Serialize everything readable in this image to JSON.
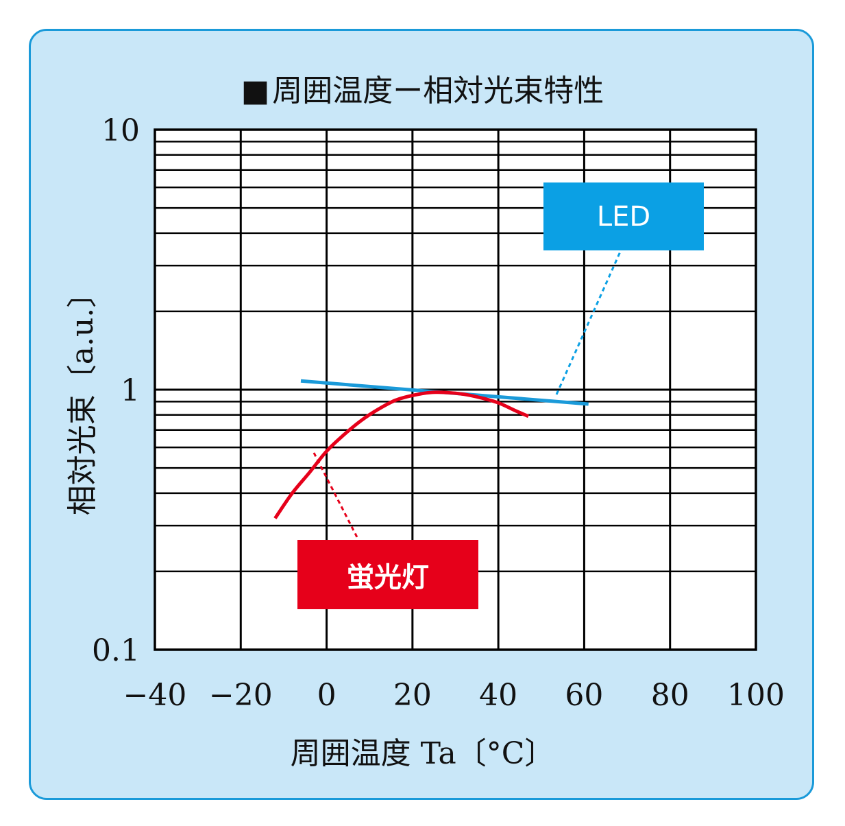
{
  "chart_data": {
    "type": "line",
    "title": "周囲温度ー相対光束特性",
    "title_marker": "■",
    "xlabel": "周囲温度 Ta〔°C〕",
    "ylabel": "相対光束〔a.u.〕",
    "x_ticks": [
      -40,
      -20,
      0,
      20,
      40,
      60,
      80,
      100
    ],
    "x_tick_labels": [
      "−40",
      "−20",
      "0",
      "20",
      "40",
      "60",
      "80",
      "100"
    ],
    "xlim": [
      -40,
      100
    ],
    "y_scale": "log",
    "ylim": [
      0.1,
      10
    ],
    "y_tick_labels": [
      "10",
      "1",
      "0.1"
    ],
    "grid": true,
    "series": [
      {
        "name": "LED",
        "color": "#1a9ad9",
        "x": [
          -6,
          61
        ],
        "y": [
          1.08,
          0.88
        ]
      },
      {
        "name": "蛍光灯",
        "color": "#e6001a",
        "x": [
          -12,
          -8,
          -4,
          0,
          4,
          8,
          12,
          16,
          20,
          24,
          28,
          32,
          36,
          40,
          44,
          47
        ],
        "y": [
          0.32,
          0.4,
          0.48,
          0.58,
          0.67,
          0.76,
          0.84,
          0.91,
          0.95,
          0.975,
          0.975,
          0.96,
          0.93,
          0.89,
          0.83,
          0.79
        ]
      }
    ],
    "annotations": [
      {
        "text": "LED",
        "series": "LED",
        "color": "#0ba0e4"
      },
      {
        "text": "蛍光灯",
        "series": "蛍光灯",
        "color": "#e6001a"
      }
    ]
  }
}
